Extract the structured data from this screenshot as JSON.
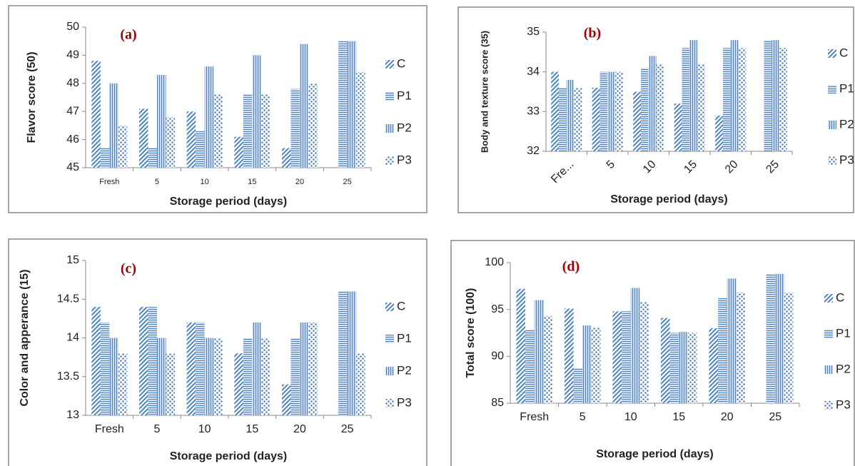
{
  "chart_data": [
    {
      "type": "bar",
      "annotation": "(a)",
      "ylabel": "Flavor score (50)",
      "xlabel": "Storage period (days)",
      "categories": [
        "Fresh",
        "5",
        "10",
        "15",
        "20",
        "25"
      ],
      "ylim": [
        45,
        50
      ],
      "yticks": [
        45,
        46,
        47,
        48,
        49,
        50
      ],
      "legend": "right",
      "xtick_rotation": 0,
      "series": [
        {
          "name": "C",
          "color": "#4f81bd",
          "values": [
            48.8,
            47.1,
            47.0,
            46.1,
            45.7,
            null
          ]
        },
        {
          "name": "P1",
          "color": "#4f81bd",
          "values": [
            45.7,
            45.7,
            46.3,
            47.6,
            47.8,
            49.5
          ]
        },
        {
          "name": "P2",
          "color": "#4f81bd",
          "values": [
            48.0,
            48.3,
            48.6,
            49.0,
            49.4,
            49.5
          ]
        },
        {
          "name": "P3",
          "color": "#4f81bd",
          "values": [
            46.5,
            46.8,
            47.6,
            47.6,
            48.0,
            48.4
          ]
        }
      ]
    },
    {
      "type": "bar",
      "annotation": "(b)",
      "ylabel": "Body and texture score (35)",
      "xlabel": "Storage period (days)",
      "categories": [
        "Fre...",
        "5",
        "10",
        "15",
        "20",
        "25"
      ],
      "ylim": [
        32,
        35
      ],
      "yticks": [
        32,
        33,
        34,
        35
      ],
      "legend": "right",
      "xtick_rotation": -45,
      "series": [
        {
          "name": "C",
          "color": "#4f81bd",
          "values": [
            34.0,
            33.6,
            33.5,
            33.2,
            32.9,
            null
          ]
        },
        {
          "name": "P1",
          "color": "#4f81bd",
          "values": [
            33.6,
            34.0,
            34.1,
            34.6,
            34.6,
            34.8
          ]
        },
        {
          "name": "P2",
          "color": "#4f81bd",
          "values": [
            33.8,
            34.0,
            34.4,
            34.8,
            34.8,
            34.8
          ]
        },
        {
          "name": "P3",
          "color": "#4f81bd",
          "values": [
            33.6,
            34.0,
            34.2,
            34.2,
            34.6,
            34.6
          ]
        }
      ]
    },
    {
      "type": "bar",
      "annotation": "(c)",
      "ylabel": "Color and apperance (15)",
      "xlabel": "Storage period (days)",
      "categories": [
        "Fresh",
        "5",
        "10",
        "15",
        "20",
        "25"
      ],
      "ylim": [
        13,
        15
      ],
      "yticks": [
        13,
        13.5,
        14,
        14.5,
        15
      ],
      "legend": "right",
      "xtick_rotation": 0,
      "series": [
        {
          "name": "C",
          "color": "#4f81bd",
          "values": [
            14.4,
            14.4,
            14.2,
            13.8,
            13.4,
            null
          ]
        },
        {
          "name": "P1",
          "color": "#4f81bd",
          "values": [
            14.2,
            14.4,
            14.2,
            14.0,
            14.0,
            14.6
          ]
        },
        {
          "name": "P2",
          "color": "#4f81bd",
          "values": [
            14.0,
            14.0,
            14.0,
            14.2,
            14.2,
            14.6
          ]
        },
        {
          "name": "P3",
          "color": "#4f81bd",
          "values": [
            13.8,
            13.8,
            14.0,
            14.0,
            14.2,
            13.8
          ]
        }
      ]
    },
    {
      "type": "bar",
      "annotation": "(d)",
      "ylabel": "Total  score (100)",
      "xlabel": "Storage period (days)",
      "categories": [
        "Fresh",
        "5",
        "10",
        "15",
        "20",
        "25"
      ],
      "ylim": [
        85,
        100
      ],
      "yticks": [
        85,
        90,
        95,
        100
      ],
      "legend": "right",
      "xtick_rotation": 0,
      "series": [
        {
          "name": "C",
          "color": "#4f81bd",
          "values": [
            97.2,
            95.1,
            94.8,
            94.1,
            93.0,
            null
          ]
        },
        {
          "name": "P1",
          "color": "#4f81bd",
          "values": [
            92.8,
            88.7,
            94.8,
            92.5,
            96.2,
            98.8
          ]
        },
        {
          "name": "P2",
          "color": "#4f81bd",
          "values": [
            96.0,
            93.3,
            97.3,
            92.6,
            98.3,
            98.8
          ]
        },
        {
          "name": "P3",
          "color": "#4f81bd",
          "values": [
            94.3,
            93.1,
            95.8,
            92.5,
            96.8,
            96.8
          ]
        }
      ]
    }
  ]
}
